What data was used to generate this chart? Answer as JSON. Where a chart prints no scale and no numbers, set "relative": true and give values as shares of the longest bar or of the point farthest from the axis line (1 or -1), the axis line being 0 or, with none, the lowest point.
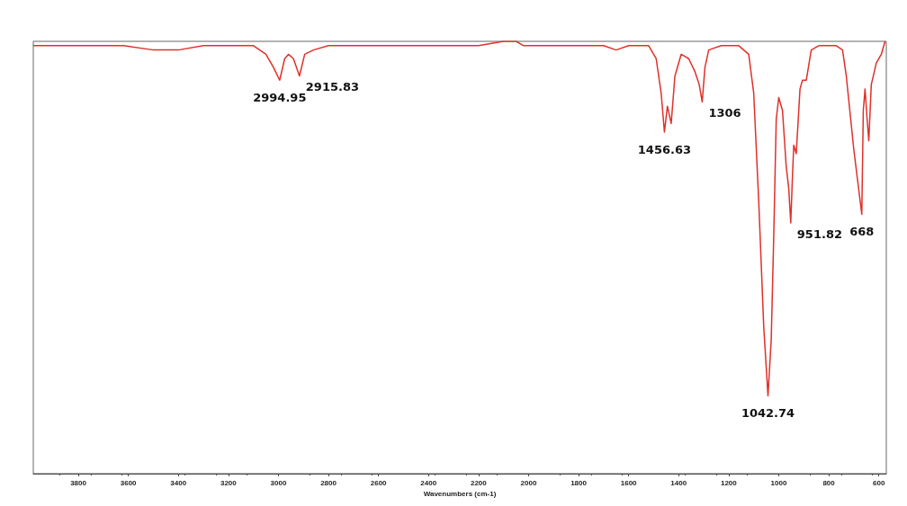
{
  "chart_data": {
    "type": "line",
    "relative": true,
    "xlabel": "Wavenumbers (cm-1)",
    "xlim": [
      3980,
      570
    ],
    "xticks": [
      3800,
      3600,
      3400,
      3200,
      3000,
      2800,
      2600,
      2400,
      2200,
      2000,
      1800,
      1600,
      1400,
      1200,
      1000,
      800,
      600
    ],
    "grid": false,
    "marker": "none",
    "line_style": "solid",
    "x": [
      3980,
      3900,
      3800,
      3700,
      3620,
      3500,
      3400,
      3300,
      3200,
      3100,
      3050,
      3020,
      2995,
      2975,
      2960,
      2940,
      2916,
      2895,
      2860,
      2800,
      2600,
      2400,
      2200,
      2100,
      2050,
      2020,
      1800,
      1700,
      1650,
      1600,
      1520,
      1490,
      1470,
      1457,
      1445,
      1430,
      1415,
      1390,
      1360,
      1335,
      1318,
      1306,
      1295,
      1280,
      1230,
      1160,
      1120,
      1100,
      1080,
      1060,
      1043,
      1030,
      1020,
      1010,
      1000,
      985,
      970,
      960,
      952,
      945,
      940,
      930,
      915,
      905,
      890,
      870,
      840,
      770,
      745,
      730,
      700,
      668,
      662,
      655,
      648,
      640,
      630,
      610,
      590,
      575
    ],
    "series": [
      {
        "color": "#e0302a",
        "values": [
          0.99,
          0.99,
          0.99,
          0.99,
          0.99,
          0.98,
          0.98,
          0.99,
          0.99,
          0.99,
          0.97,
          0.94,
          0.91,
          0.96,
          0.97,
          0.96,
          0.92,
          0.97,
          0.98,
          0.99,
          0.99,
          0.99,
          0.99,
          1.0,
          1.0,
          0.99,
          0.99,
          0.99,
          0.98,
          0.99,
          0.99,
          0.96,
          0.88,
          0.79,
          0.85,
          0.81,
          0.92,
          0.97,
          0.96,
          0.93,
          0.9,
          0.86,
          0.94,
          0.98,
          0.99,
          0.99,
          0.97,
          0.88,
          0.63,
          0.34,
          0.18,
          0.31,
          0.55,
          0.82,
          0.87,
          0.84,
          0.71,
          0.66,
          0.58,
          0.69,
          0.76,
          0.74,
          0.89,
          0.91,
          0.91,
          0.98,
          0.99,
          0.99,
          0.98,
          0.92,
          0.75,
          0.6,
          0.84,
          0.89,
          0.83,
          0.77,
          0.9,
          0.95,
          0.97,
          1.0
        ]
      }
    ],
    "annotations": [
      {
        "text": "2994.95",
        "x": 2995,
        "y": 0.91
      },
      {
        "text": "2915.83",
        "x": 2916,
        "y": 0.92
      },
      {
        "text": "1456.63",
        "x": 1457,
        "y": 0.79
      },
      {
        "text": "1306",
        "x": 1306,
        "y": 0.86
      },
      {
        "text": "1042.74",
        "x": 1043,
        "y": 0.18
      },
      {
        "text": "951.82",
        "x": 952,
        "y": 0.58
      },
      {
        "text": "668",
        "x": 668,
        "y": 0.6
      }
    ]
  }
}
